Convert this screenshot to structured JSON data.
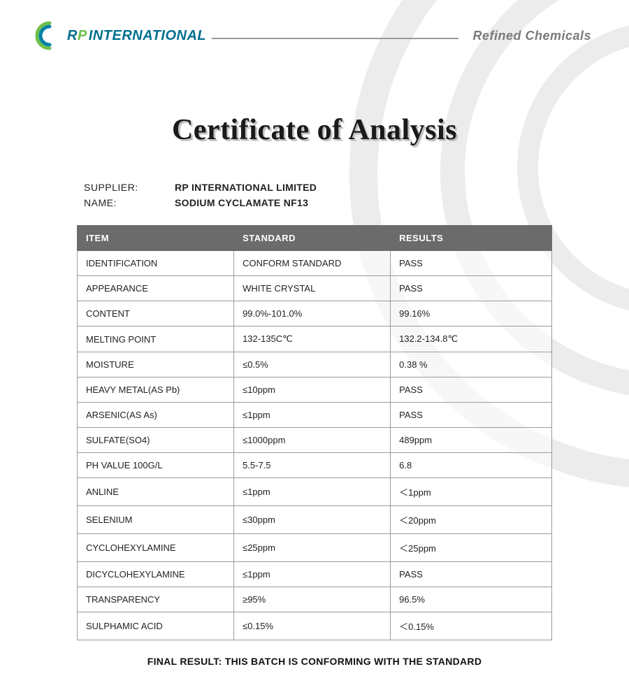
{
  "header": {
    "logo_initial_r": "R",
    "logo_initial_p": "P",
    "logo_word": "INTERNATIONAL",
    "tagline": "Refined  Chemicals",
    "logo_colors": {
      "outer_arc": "#6fbf4b",
      "inner_arc": "#0083a8",
      "text_primary": "#006f8f",
      "text_accent": "#6fbf4b"
    },
    "line_color": "#9a9a9a",
    "tagline_color": "#7a7a7a"
  },
  "title": "Certificate of Analysis",
  "info": {
    "supplier_label": "SUPPLIER:",
    "supplier_value": "RP INTERNATIONAL LIMITED",
    "name_label": "NAME:",
    "name_value": "SODIUM CYCLAMATE NF13"
  },
  "table": {
    "header_bg": "#6b6b6b",
    "header_fg": "#ffffff",
    "border_color": "#9a9a9a",
    "columns": [
      "ITEM",
      "STANDARD",
      "RESULTS"
    ],
    "rows": [
      [
        "IDENTIFICATION",
        "CONFORM STANDARD",
        "PASS"
      ],
      [
        "APPEARANCE",
        "WHITE CRYSTAL",
        "PASS"
      ],
      [
        "CONTENT",
        "99.0%-101.0%",
        "99.16%"
      ],
      [
        "MELTING POINT",
        "132-135C℃",
        "132.2-134.8℃"
      ],
      [
        "MOISTURE",
        "≤0.5%",
        "0.38 %"
      ],
      [
        "HEAVY METAL(AS Pb)",
        "≤10ppm",
        "PASS"
      ],
      [
        "ARSENIC(AS As)",
        "≤1ppm",
        "PASS"
      ],
      [
        "SULFATE(SO4)",
        "≤1000ppm",
        "489ppm"
      ],
      [
        "PH VALUE 100G/L",
        "5.5-7.5",
        "6.8"
      ],
      [
        "ANLINE",
        "≤1ppm",
        "＜1ppm"
      ],
      [
        "SELENIUM",
        "≤30ppm",
        "＜20ppm"
      ],
      [
        "CYCLOHEXYLAMINE",
        "≤25ppm",
        "＜25ppm"
      ],
      [
        "DICYCLOHEXYLAMINE",
        "≤1ppm",
        "PASS"
      ],
      [
        "TRANSPARENCY",
        "≥95%",
        "96.5%"
      ],
      [
        "SULPHAMIC ACID",
        "≤0.15%",
        "＜0.15%"
      ]
    ]
  },
  "final_result": "FINAL RESULT: THIS BATCH IS CONFORMING WITH THE STANDARD",
  "background": {
    "arc_color": "#ececec",
    "page_bg": "#ffffff"
  }
}
